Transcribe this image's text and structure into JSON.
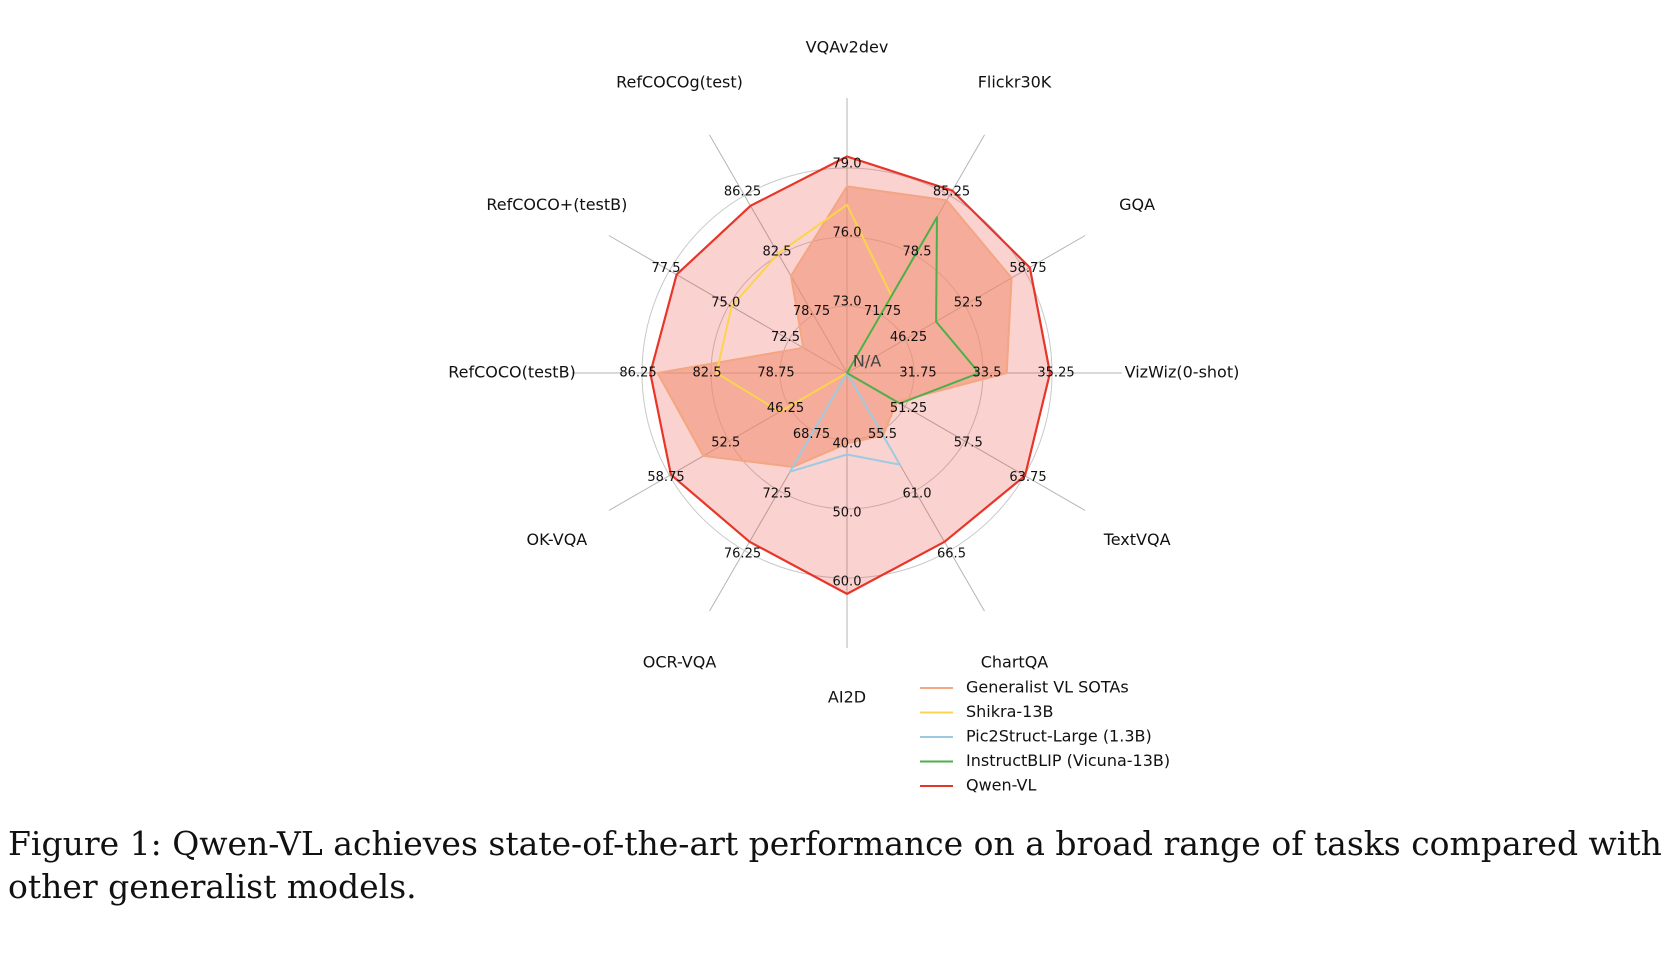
{
  "chart_data": {
    "type": "radar",
    "center_label": "N/A",
    "axes": [
      {
        "name": "VQAv2dev",
        "ticks": [
          "73.0",
          "76.0",
          "79.0"
        ]
      },
      {
        "name": "Flickr30K",
        "ticks": [
          "71.75",
          "78.5",
          "85.25"
        ]
      },
      {
        "name": "GQA",
        "ticks": [
          "46.25",
          "52.5",
          "58.75"
        ]
      },
      {
        "name": "VizWiz(0-shot)",
        "ticks": [
          "31.75",
          "33.5",
          "35.25"
        ]
      },
      {
        "name": "TextVQA",
        "ticks": [
          "51.25",
          "57.5",
          "63.75"
        ]
      },
      {
        "name": "ChartQA",
        "ticks": [
          "55.5",
          "61.0",
          "66.5"
        ]
      },
      {
        "name": "AI2D",
        "ticks": [
          "40.0",
          "50.0",
          "60.0"
        ]
      },
      {
        "name": "OCR-VQA",
        "ticks": [
          "68.75",
          "72.5",
          "76.25"
        ]
      },
      {
        "name": "OK-VQA",
        "ticks": [
          "46.25",
          "52.5",
          "58.75"
        ]
      },
      {
        "name": "RefCOCO(testB)",
        "ticks": [
          "78.75",
          "82.5",
          "86.25"
        ]
      },
      {
        "name": "RefCOCO+(testB)",
        "ticks": [
          "72.5",
          "75.0",
          "77.5"
        ]
      },
      {
        "name": "RefCOCOg(test)",
        "ticks": [
          "78.75",
          "82.5",
          "86.25"
        ]
      }
    ],
    "series": [
      {
        "name": "Generalist VL SOTAs",
        "color": "#f4a582",
        "filled": true,
        "values": [
          78.2,
          84.7,
          57.4,
          34.1,
          50.4,
          55.9,
          40.5,
          71.0,
          55.2,
          85.4,
          71.9,
          81.2
        ]
      },
      {
        "name": "Shikra-13B",
        "color": "#fcd34d",
        "filled": false,
        "values": [
          77.4,
          73.9,
          null,
          null,
          null,
          null,
          null,
          null,
          47.2,
          82.2,
          74.9,
          82.6
        ]
      },
      {
        "name": "Pic2Struct-Large (1.3B)",
        "color": "#9ecae1",
        "filled": false,
        "values": [
          null,
          null,
          null,
          null,
          null,
          58.6,
          42.1,
          71.3,
          null,
          null,
          null,
          null
        ]
      },
      {
        "name": "InstructBLIP (Vicuna-13B)",
        "color": "#4daf4a",
        "filled": false,
        "values": [
          null,
          82.8,
          49.5,
          33.4,
          50.7,
          null,
          null,
          null,
          null,
          null,
          null,
          null
        ]
      },
      {
        "name": "Qwen-VL",
        "color": "#e8352a",
        "filled": true,
        "values": [
          79.5,
          85.8,
          59.3,
          35.2,
          63.8,
          65.7,
          62.3,
          75.7,
          58.6,
          85.8,
          77.2,
          85.6
        ]
      }
    ]
  },
  "caption": "Figure 1: Qwen-VL achieves state-of-the-art performance on a broad range of tasks compared with other generalist models."
}
